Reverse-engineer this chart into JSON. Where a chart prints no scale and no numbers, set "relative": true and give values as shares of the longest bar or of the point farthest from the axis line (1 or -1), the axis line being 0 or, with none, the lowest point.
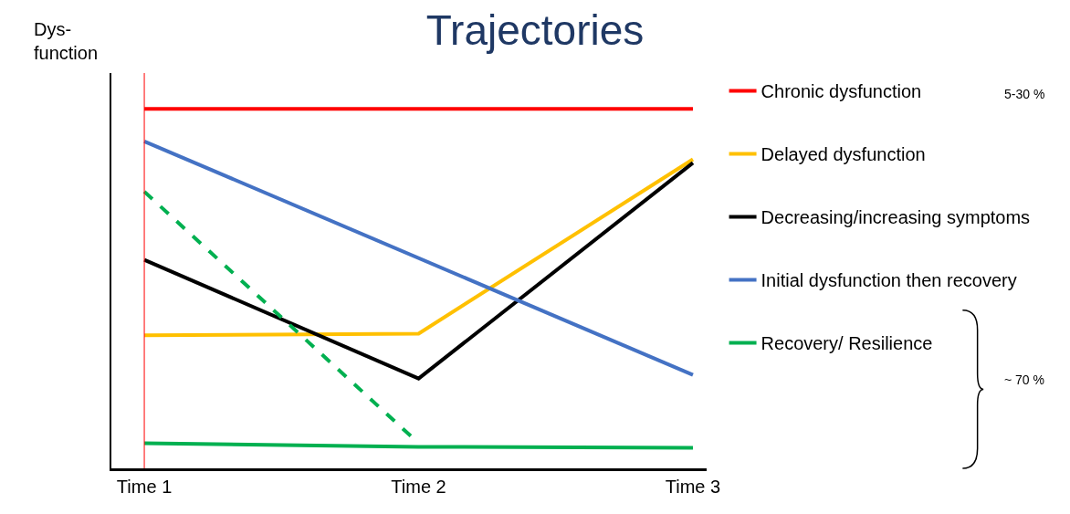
{
  "chart_data": {
    "type": "line",
    "title": "Trajectories",
    "ylabel": "Dys-function",
    "relative": true,
    "categories": [
      "Time 1",
      "Time 2",
      "Time 3"
    ],
    "series": [
      {
        "name": "Chronic dysfunction",
        "color": "#ff0000",
        "values": [
          1,
          1,
          1
        ]
      },
      {
        "name": "Delayed dysfunction",
        "color": "#ffc000",
        "values": [
          0.37,
          0.375,
          0.86
        ]
      },
      {
        "name": "Decreasing/increasing symptoms",
        "color": "#000000",
        "values": [
          0.58,
          0.25,
          0.85
        ]
      },
      {
        "name": "Initial dysfunction then recovery",
        "color": "#4472c4",
        "values": [
          0.91,
          null,
          0.26
        ]
      },
      {
        "name": "Recovery/ Resilience",
        "color": "#00b050",
        "values": [
          0.07,
          0.06,
          0.057
        ]
      },
      {
        "color": "#00b050",
        "values": [
          0.77,
          0.07,
          null
        ],
        "line_style": "dashed"
      }
    ],
    "ref_lines": [
      {
        "axis": "x",
        "value": "Time 1",
        "color": "#ff0000"
      }
    ],
    "annotations": [
      "5-30 %",
      "~ 70 %"
    ],
    "legend": "right",
    "marker": "none"
  }
}
